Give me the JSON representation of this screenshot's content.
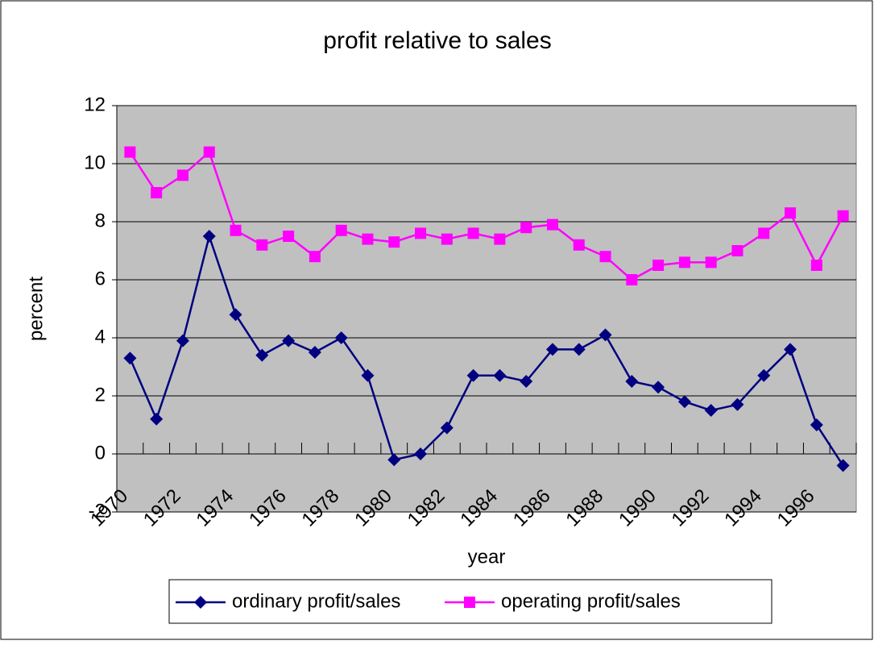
{
  "chart_data": {
    "type": "line",
    "title": "profit relative to sales",
    "x_label": "year",
    "y_label": "percent",
    "categories": [
      "1970",
      null,
      "1972",
      null,
      "1974",
      null,
      "1976",
      null,
      "1978",
      null,
      "1980",
      null,
      "1982",
      null,
      "1984",
      null,
      "1986",
      null,
      "1988",
      null,
      "1990",
      null,
      "1992",
      null,
      "1994",
      null,
      "1996",
      null
    ],
    "series": [
      {
        "name": "ordinary profit/sales",
        "color": "#000080",
        "marker": "diamond",
        "values": [
          3.3,
          1.2,
          3.9,
          7.5,
          4.8,
          3.4,
          3.9,
          3.5,
          4.0,
          2.7,
          -0.2,
          0.0,
          0.9,
          2.7,
          2.7,
          2.5,
          3.6,
          3.6,
          4.1,
          2.5,
          2.3,
          1.8,
          1.5,
          1.7,
          2.7,
          3.6,
          1.0,
          -0.4
        ]
      },
      {
        "name": "operating profit/sales",
        "color": "#ff00ff",
        "marker": "square",
        "values": [
          10.4,
          9.0,
          9.6,
          10.4,
          7.7,
          7.2,
          7.5,
          6.8,
          7.7,
          7.4,
          7.3,
          7.6,
          7.4,
          7.6,
          7.4,
          7.8,
          7.9,
          7.2,
          6.8,
          6.0,
          6.5,
          6.6,
          6.6,
          7.0,
          7.6,
          8.3,
          6.5,
          8.2
        ]
      }
    ],
    "ylim": [
      -2,
      12
    ],
    "yticks": [
      -2,
      0,
      2,
      4,
      6,
      8,
      10,
      12
    ],
    "grid": true,
    "legend": "bottom"
  }
}
